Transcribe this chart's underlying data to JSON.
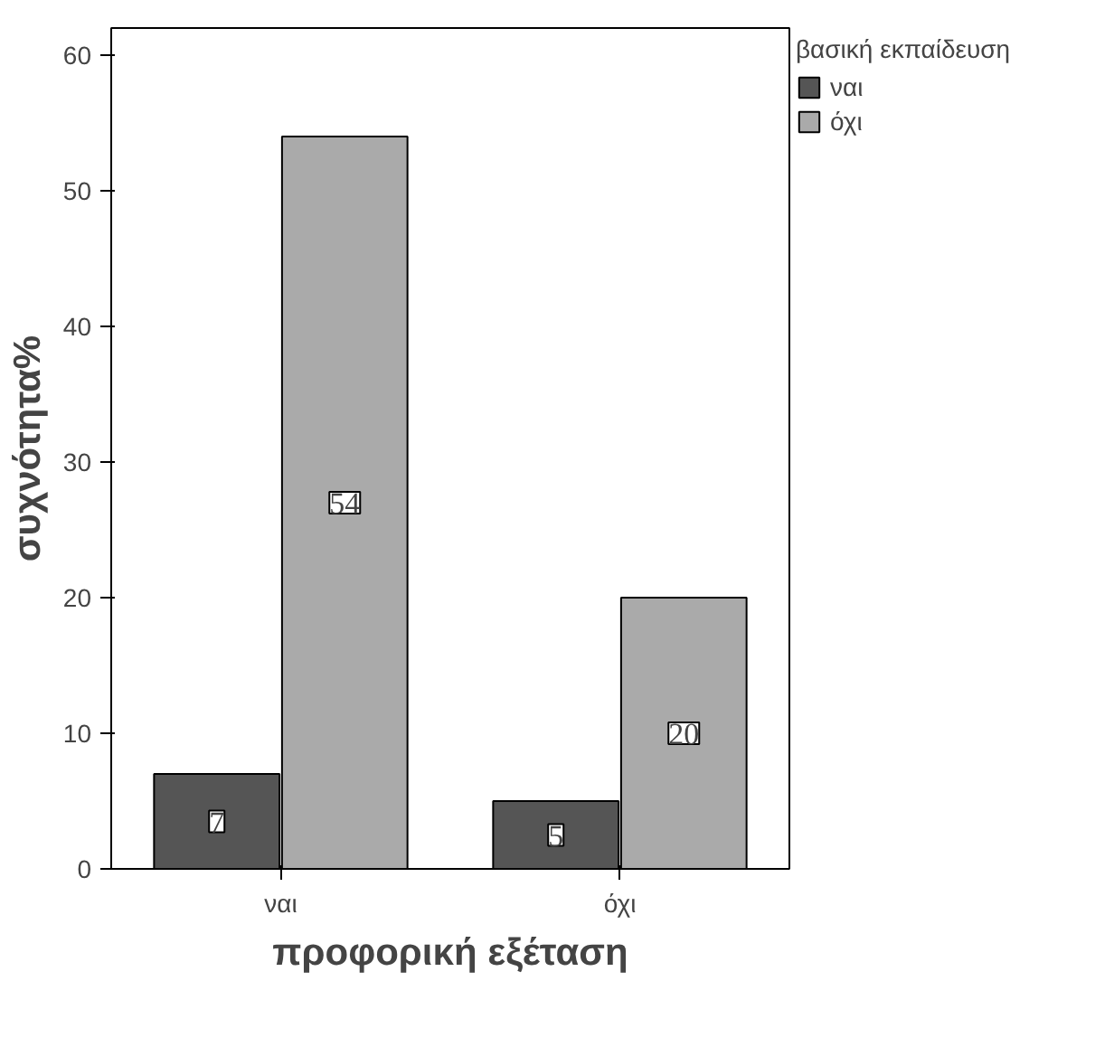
{
  "chart_data": {
    "type": "bar",
    "categories": [
      "ναι",
      "όχι"
    ],
    "xlabel": "προφορική εξέταση",
    "ylabel": "συχνότητα%",
    "legend_title": "βασική εκπαίδευση",
    "series": [
      {
        "name": "ναι",
        "color": "#555555",
        "values": [
          7,
          5
        ]
      },
      {
        "name": "όχι",
        "color": "#aaaaaa",
        "values": [
          54,
          20
        ]
      }
    ],
    "ylim": [
      0,
      62
    ],
    "yticks": [
      0,
      10,
      20,
      30,
      40,
      50,
      60
    ],
    "grid": false,
    "legend": "right",
    "data_labels": true
  }
}
